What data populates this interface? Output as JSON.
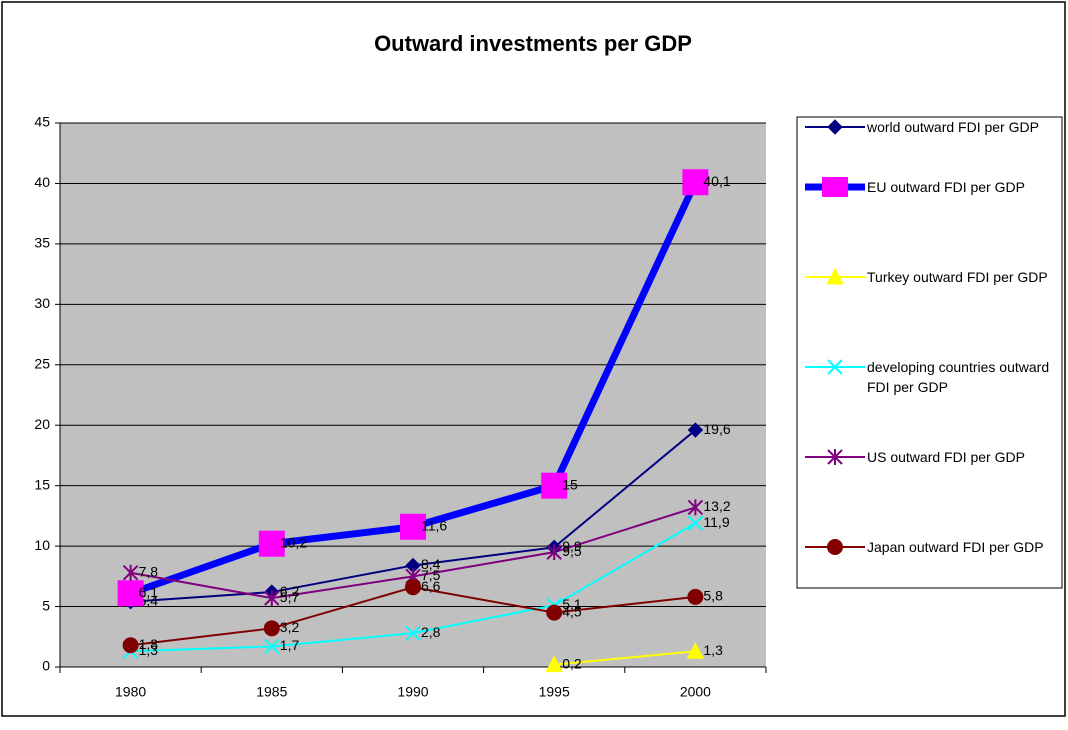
{
  "chart_data": {
    "type": "line",
    "title": "Outward investments per GDP",
    "categories": [
      "1980",
      "1985",
      "1990",
      "1995",
      "2000"
    ],
    "ylim": [
      0,
      45
    ],
    "yticks": [
      0,
      5,
      10,
      15,
      20,
      25,
      30,
      35,
      40,
      45
    ],
    "grid": true,
    "legend": "right",
    "series": [
      {
        "name": "world outward FDI per GDP",
        "color": "#000080",
        "marker_color": "#000080",
        "marker": "diamond",
        "values": [
          5.4,
          6.2,
          8.4,
          9.9,
          19.6
        ],
        "value_labels": [
          "5,4",
          "6,2",
          "8,4",
          "9,9",
          "19,6"
        ]
      },
      {
        "name": "EU outward FDI per GDP",
        "color": "#0000ff",
        "marker_color": "#ff00ff",
        "marker": "square",
        "values": [
          6.1,
          10.2,
          11.6,
          15,
          40.1
        ],
        "value_labels": [
          "6,1",
          "10,2",
          "11,6",
          "15",
          "40,1"
        ]
      },
      {
        "name": "Turkey outward FDI per GDP",
        "color": "#ffff00",
        "marker_color": "#ffff00",
        "marker": "triangle",
        "values": [
          null,
          null,
          null,
          0.2,
          1.3
        ],
        "value_labels": [
          null,
          null,
          null,
          "0,2",
          "1,3"
        ]
      },
      {
        "name": "developing countries outward FDI per GDP",
        "color": "#00ffff",
        "marker_color": "#00ffff",
        "marker": "x",
        "values": [
          1.3,
          1.7,
          2.8,
          5.1,
          11.9
        ],
        "value_labels": [
          "1,3",
          "1,7",
          "2,8",
          "5,1",
          "11,9"
        ]
      },
      {
        "name": "US outward FDI per GDP",
        "color": "#800080",
        "marker_color": "#800080",
        "marker": "star",
        "values": [
          7.8,
          5.7,
          7.5,
          9.5,
          13.2
        ],
        "value_labels": [
          "7,8",
          "5,7",
          "7,5",
          "9,5",
          "13,2"
        ]
      },
      {
        "name": "Japan outward FDI per GDP",
        "color": "#800000",
        "marker_color": "#800000",
        "marker": "circle",
        "values": [
          1.8,
          3.2,
          6.6,
          4.5,
          5.8
        ],
        "value_labels": [
          "1,8",
          "3,2",
          "6,6",
          "4,5",
          "5,8"
        ]
      }
    ]
  }
}
